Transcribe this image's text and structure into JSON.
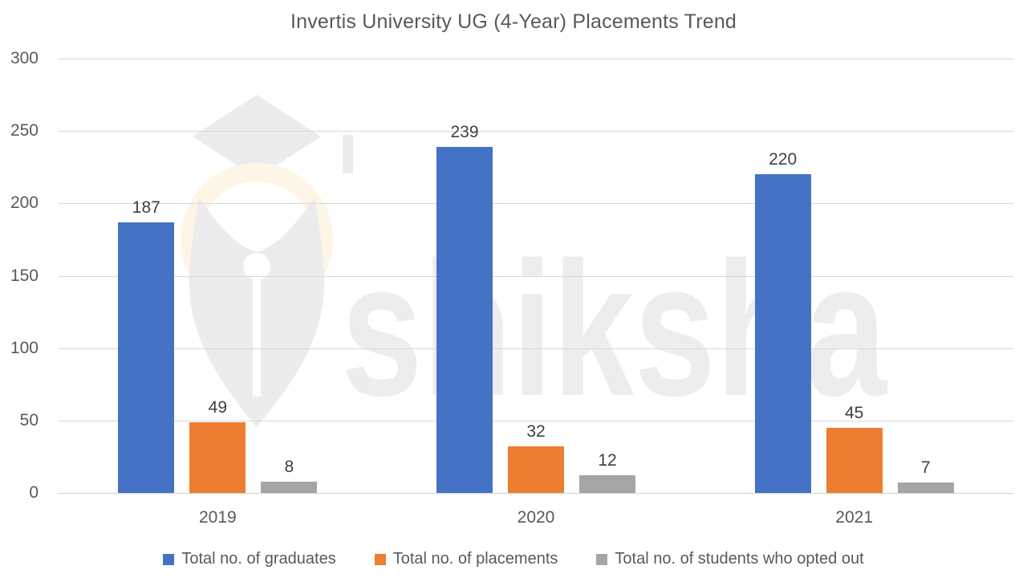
{
  "watermark": {
    "text": "shiksha",
    "text_color": "#ededed",
    "logo": "graduation-cap-pen-nib",
    "logo_color": "#ececec",
    "logo_accent_color": "#fdf6e6"
  },
  "chart_data": {
    "type": "bar",
    "title": "Invertis University UG (4-Year) Placements Trend",
    "categories": [
      "2019",
      "2020",
      "2021"
    ],
    "series": [
      {
        "name": "Total no. of graduates",
        "color": "#4472C4",
        "values": [
          187,
          239,
          220
        ]
      },
      {
        "name": "Total no. of placements",
        "color": "#ED7D31",
        "values": [
          49,
          32,
          45
        ]
      },
      {
        "name": "Total no. of students who opted out",
        "color": "#A5A5A5",
        "values": [
          8,
          12,
          7
        ]
      }
    ],
    "xlabel": "",
    "ylabel": "",
    "ylim": [
      0,
      300
    ],
    "yticks": [
      0,
      50,
      100,
      150,
      200,
      250,
      300
    ],
    "grid": true,
    "data_labels": true,
    "legend_position": "bottom",
    "title_color": "#595959",
    "axis_text_color": "#595959",
    "data_label_color": "#3f3f3f",
    "grid_color": "#d9d9d9"
  }
}
